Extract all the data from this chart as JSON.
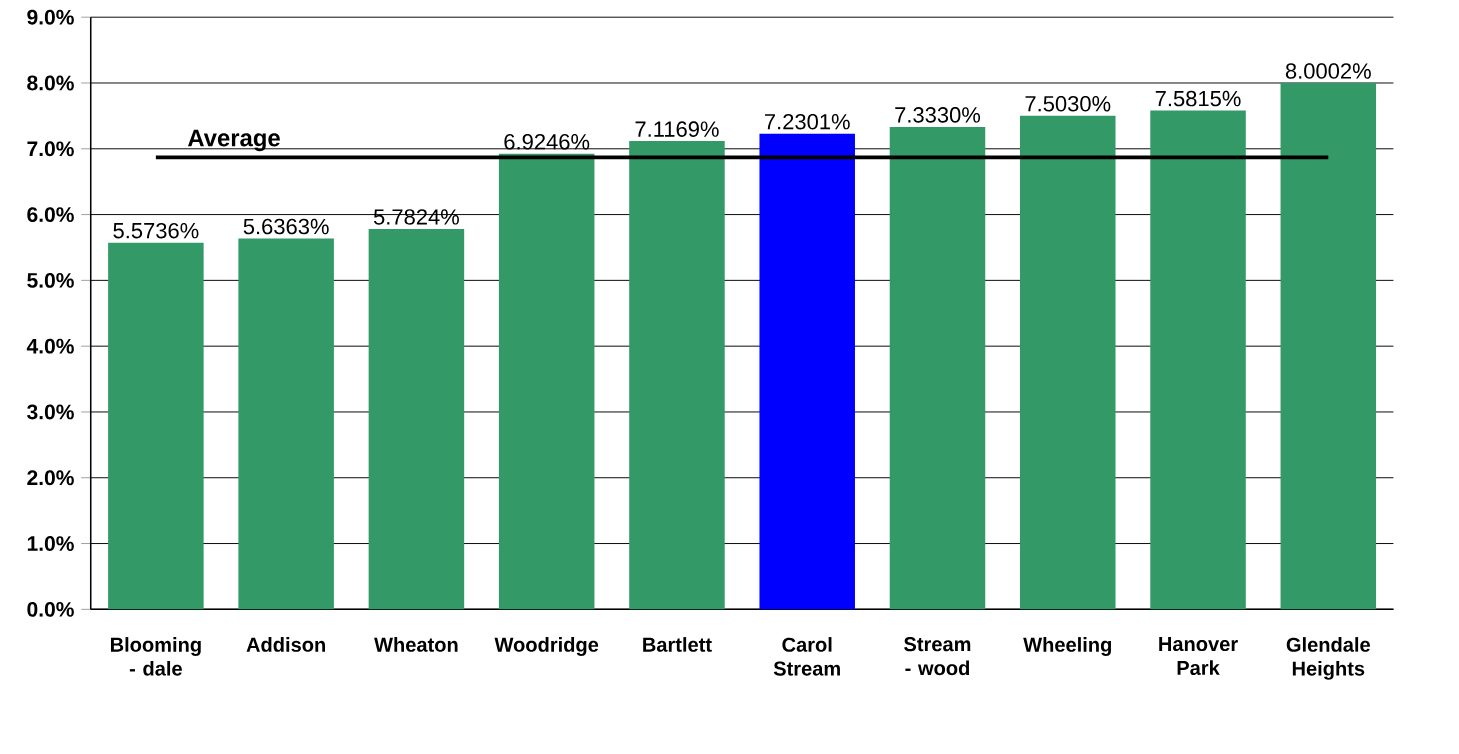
{
  "chart_data": {
    "type": "bar",
    "categories": [
      "Blooming - dale",
      "Addison",
      "Wheaton",
      "Woodridge",
      "Bartlett",
      "Carol Stream",
      "Stream - wood",
      "Wheeling",
      "Hanover Park",
      "Glendale Heights"
    ],
    "values": [
      5.5736,
      5.6363,
      5.7824,
      6.9246,
      7.1169,
      7.2301,
      7.333,
      7.503,
      7.5815,
      8.0002
    ],
    "colors": [
      "#339966",
      "#339966",
      "#339966",
      "#339966",
      "#339966",
      "#0000ff",
      "#339966",
      "#339966",
      "#339966",
      "#339966"
    ],
    "value_labels": [
      "5.5736%",
      "5.6363%",
      "5.7824%",
      "6.9246%",
      "7.1169%",
      "7.2301%",
      "7.3330%",
      "7.5030%",
      "7.5815%",
      "8.0002%"
    ],
    "ylim": [
      0,
      9
    ],
    "yticks": [
      {
        "value": 0,
        "label": "0.0%"
      },
      {
        "value": 1,
        "label": "1.0%"
      },
      {
        "value": 2,
        "label": "2.0%"
      },
      {
        "value": 3,
        "label": "3.0%"
      },
      {
        "value": 4,
        "label": "4.0%"
      },
      {
        "value": 5,
        "label": "5.0%"
      },
      {
        "value": 6,
        "label": "6.0%"
      },
      {
        "value": 7,
        "label": "7.0%"
      },
      {
        "value": 8,
        "label": "8.0%"
      },
      {
        "value": 9,
        "label": "9.0%"
      }
    ],
    "grid": "y",
    "ref_lines": [
      {
        "axis": "y",
        "value": 6.87,
        "label": "Average",
        "color": "#000000"
      }
    ]
  }
}
